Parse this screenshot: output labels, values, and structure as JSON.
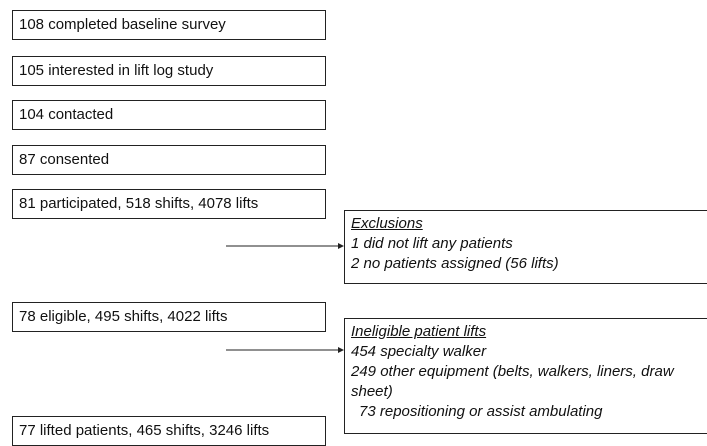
{
  "boxes": [
    "108 completed baseline survey",
    "105 interested in lift log study",
    "104 contacted",
    "87 consented",
    "81 participated, 518 shifts, 4078 lifts",
    "78 eligible, 495 shifts, 4022 lifts",
    "77 lifted patients, 465 shifts, 3246 lifts"
  ],
  "exclusions": {
    "title": "Exclusions",
    "items": [
      "1 did not lift any patients",
      "2 no patients assigned (56 lifts)"
    ]
  },
  "ineligible": {
    "title": "Ineligible patient lifts",
    "items": [
      "454 specialty walker",
      "249 other equipment (belts, walkers, liners, draw sheet)",
      "73 repositioning or assist ambulating"
    ]
  }
}
